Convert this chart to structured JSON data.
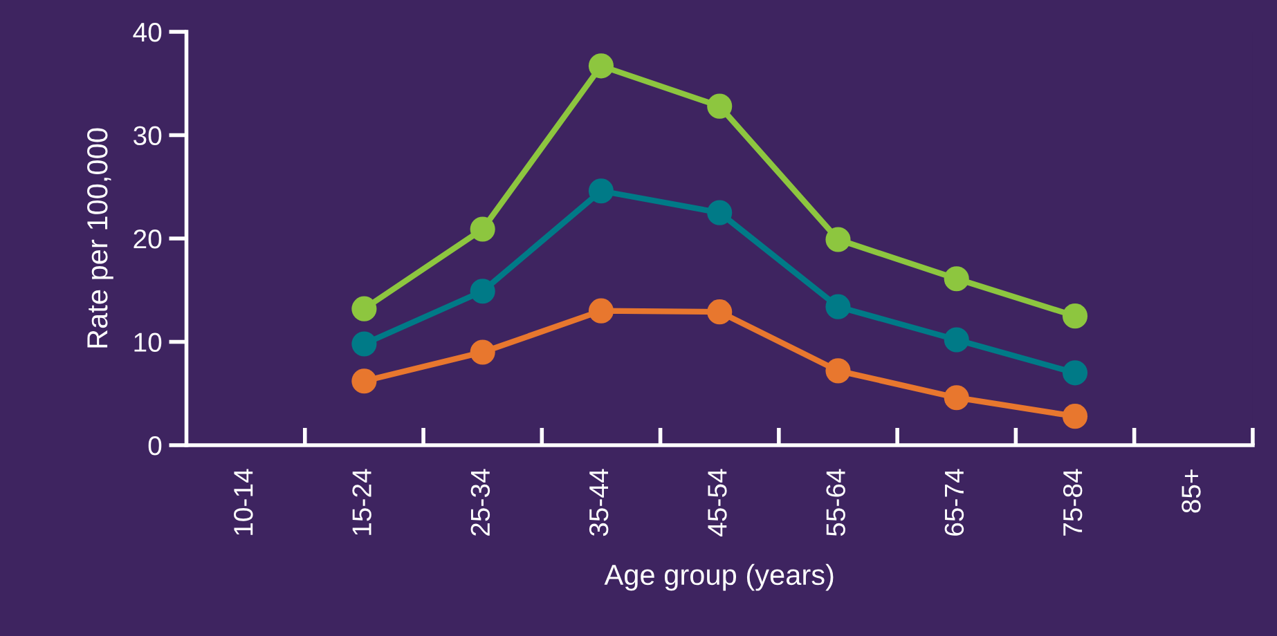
{
  "chart_data": {
    "type": "line",
    "xlabel": "Age group (years)",
    "ylabel": "Rate per 100,000",
    "categories": [
      "10-14",
      "15-24",
      "25-34",
      "35-44",
      "45-54",
      "55-64",
      "65-74",
      "75-84",
      "85+"
    ],
    "series": [
      {
        "color": "#8dc63f",
        "values": [
          null,
          13.2,
          20.9,
          36.7,
          32.8,
          19.9,
          16.1,
          12.5,
          null
        ]
      },
      {
        "color": "#007a87",
        "values": [
          null,
          9.8,
          14.9,
          24.6,
          22.5,
          13.4,
          10.2,
          7.0,
          null
        ]
      },
      {
        "color": "#e8772e",
        "values": [
          null,
          6.2,
          9.0,
          13.0,
          12.9,
          7.2,
          4.6,
          2.8,
          null
        ]
      }
    ],
    "ylim": [
      0,
      40
    ],
    "yticks": [
      0,
      10,
      20,
      30,
      40
    ],
    "grid": false,
    "marker": "circle",
    "line_style": "solid"
  }
}
